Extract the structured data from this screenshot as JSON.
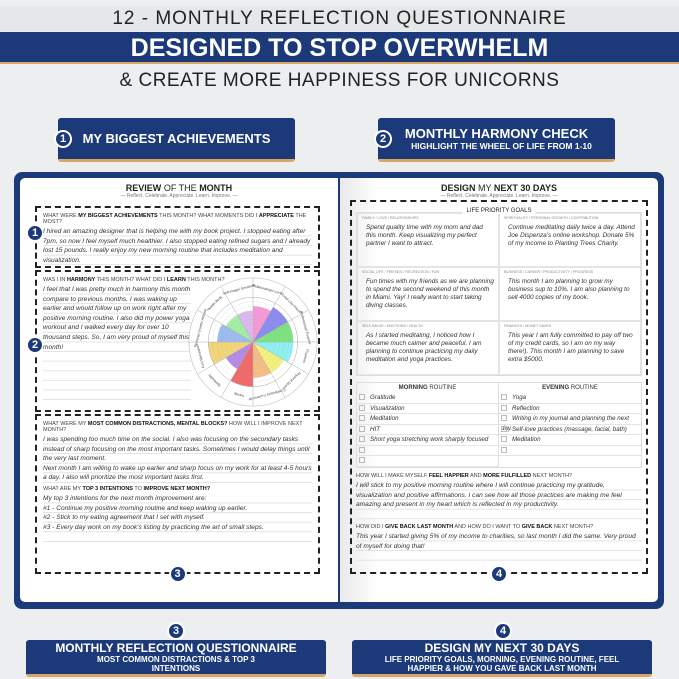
{
  "header": {
    "line1": "12 - MONTHLY REFLECTION QUESTIONNAIRE",
    "line2": "DESIGNED TO STOP OVERWHELM",
    "line3": "& CREATE MORE HAPPINESS FOR UNICORNS"
  },
  "badges": [
    {
      "num": "1",
      "title": "MY BIGGEST ACHIEVEMENTS",
      "sub": ""
    },
    {
      "num": "2",
      "title": "MONTHLY HARMONY CHECK",
      "sub": "HIGHLIGHT THE WHEEL OF LIFE FROM 1-10"
    },
    {
      "num": "3",
      "title": "MONTHLY REFLECTION QUESTIONNAIRE",
      "sub": "MOST COMMON DISTRACTIONS & TOP 3 INTENTIONS"
    },
    {
      "num": "4",
      "title": "DESIGN MY NEXT 30 DAYS",
      "sub": "LIFE PRIORITY GOALS, MORNING, EVENING ROUTINE, FEEL HAPPIER & HOW YOU GAVE BACK LAST MONTH"
    }
  ],
  "colors": {
    "navy": "#1c3a7a",
    "gold": "#d7a766"
  },
  "left": {
    "title_a": "REVIEW",
    "title_b": "OF THE",
    "title_c": "MONTH",
    "subtitle": "— Reflect. Celebrate. Appreciate. Learn. Improve. —",
    "q1": {
      "a": "What were ",
      "b": "my biggest achievements",
      "c": " this month? What moments did I ",
      "d": "appreciate",
      "e": " the most?"
    },
    "a1": "I hired an amazing designer that is helping me with my book project. I stopped eating after 7pm, so now I feel myself much healthier. I also stopped eating refined sugars and I already lost 15 pounds. I really enjoy my new morning routine that includes meditation and visualization.",
    "q2": {
      "a": "Was I in ",
      "b": "harmony",
      "c": " this month? What did I ",
      "d": "learn",
      "e": " this month?"
    },
    "a2": "I feel that I was pretty much in harmony this month compare to previous months. I was waking up earlier and would follow up on work right after my positive morning routine. I also did my power yoga workout and I walked every day for over 10 thousand steps. So, I am very proud of myself this month!",
    "q3": {
      "a": "What were my ",
      "b": "most common distractions, mental blocks?",
      "c": " How will I improve next month?"
    },
    "a3": "I was spending too much time on the social. I also was focusing on the secondary tasks instead of sharp focusing on the most important tasks. Sometimes I would delay things until the very last moment.",
    "a3b": "Next month I am willing to wake up earlier and sharp focus on my work for at least 4-5 hours a day. I also will prioritize the most important tasks first.",
    "q4": {
      "a": "What are my ",
      "b": "top 3 intentions",
      "c": " to ",
      "d": "improve next month?"
    },
    "a4": [
      "My top 3 intentions for the next month improvement are:",
      "#1 - Continue my positive morning routine and keep waking up earlier.",
      "#2 - Stick to my eating agreement that I set with myself.",
      "#3 - Every day work on my book's listing by practicing the art of small steps."
    ],
    "wheel": [
      {
        "label": "Relationships/ Love",
        "value": 8,
        "color": "#f59ad6"
      },
      {
        "label": "Social Life/ Friends",
        "value": 9,
        "color": "#8c8cf0"
      },
      {
        "label": "Professional/ Purpose",
        "value": 9,
        "color": "#7ee37e"
      },
      {
        "label": "Finances",
        "value": 9,
        "color": "#8ef0f0"
      },
      {
        "label": "Physical Space",
        "value": 8,
        "color": "#f3f07e"
      },
      {
        "label": "Contribution/ Community",
        "value": 8,
        "color": "#f5be86"
      },
      {
        "label": "Family",
        "value": 10,
        "color": "#f06a6a"
      },
      {
        "label": "Spirituality",
        "value": 7,
        "color": "#b48ae8"
      },
      {
        "label": "Fun/ Recreation",
        "value": 10,
        "color": "#f2d57a"
      },
      {
        "label": "Personal Growth/ Attitude",
        "value": 8,
        "color": "#9cbcf0"
      },
      {
        "label": "Health/ Body",
        "value": 7,
        "color": "#a2eea2"
      },
      {
        "label": "Self-Image/ Emotions",
        "value": 7,
        "color": "#dcb8f0"
      }
    ]
  },
  "right": {
    "title_a": "DESIGN",
    "title_b": "MY",
    "title_c": "NEXT 30 DAYS",
    "subtitle": "— Reflect. Celebrate. Appreciate. Learn. Improve. —",
    "goals_title": "LIFE PRIORITY GOALS",
    "goals": [
      {
        "label": "Family / Love / Relationships",
        "text": "Spend quality time with my mom and dad this month. Keep visualizing my perfect partner I want to attract."
      },
      {
        "label": "Spirituality / Personal Growth / Contribution",
        "text": "Continue meditating daily twice a day. Attend Joe Dispenza's online workshop. Donate 5% of my income to Planting Trees Charity."
      },
      {
        "label": "Social Life / Friends / Recreation / Fun",
        "text": "Fun times with my friends as we are planning to spend the second weekend of this month in Miami. Yay! I really want to start taking diving classes."
      },
      {
        "label": "Business / Career / Productivity / Progress",
        "text": "This month I am planning to grow my business sup to 10%. I am also planning to sell 4000 copies of my book."
      },
      {
        "label": "Self-Image / Emotions / Health",
        "text": "As I started meditating, I noticed how I became much calmer and peaceful. I am planning to continue practicing my daily meditation and yoga practices."
      },
      {
        "label": "Finances / Money Saved",
        "text": "This year I am fully committed to pay off two of my credit cards, so I am on my way there!). This month I am planning to save extra $5000."
      }
    ],
    "morning": {
      "a": "MORNING",
      "b": " ROUTINE",
      "items": [
        "Gratitude",
        "Visualization",
        "Meditation",
        "HIT",
        "Short yoga stretching work sharply focused",
        "",
        ""
      ]
    },
    "evening": {
      "a": "EVENING",
      "b": " ROUTINE",
      "items": [
        "Yoga",
        "Reflection",
        "Writing in my journal and planning the next day.",
        "Self-love practices (massage, facial, bath)",
        "Meditation",
        ""
      ]
    },
    "q5": {
      "a": "How will I make myself ",
      "b": "feel happier",
      "c": " and ",
      "d": "more fulfilled",
      "e": " next month?"
    },
    "a5": "I will stick to my positive morning routine where I will continue practicing my gratitude, visualization and positive affirmations. I can see how all those practices are making me feel amazing and present in my heart which is reflected in my productivity.",
    "q6": {
      "a": "How did I ",
      "b": "give back last month",
      "c": " and how do I want to ",
      "d": "give back",
      "e": " next month?"
    },
    "a6": "This year I started giving 5% of my income to charities, so last month I did the same. Very proud of myself for doing that!"
  }
}
